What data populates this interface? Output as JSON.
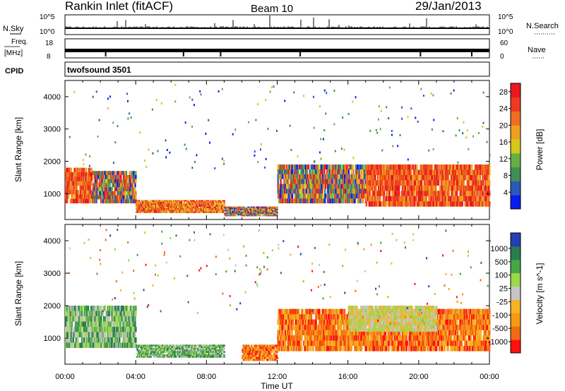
{
  "header": {
    "title": "Rankin Inlet (fitACF)",
    "beam": "Beam 10",
    "date": "29/Jan/2013"
  },
  "panels": {
    "nsky": {
      "left_label": "N.Sky",
      "left_ticks": [
        "10^5",
        "10^0"
      ],
      "right_ticks": [
        "10^5",
        "10^0"
      ],
      "right_label": "N.Search"
    },
    "freq": {
      "left_label_1": "Freq.",
      "left_label_2": "[MHz]",
      "left_ticks": [
        "18",
        "8"
      ],
      "right_ticks": [
        "60",
        "0"
      ],
      "right_label": "Nave"
    },
    "cpid": {
      "label": "CPID",
      "value": "twofsound 3501"
    }
  },
  "colors": {
    "power_scale": [
      "#0a1cf0",
      "#2a59b8",
      "#3f8f55",
      "#64b044",
      "#d7c61b",
      "#f0a020",
      "#f06e1f",
      "#ee3a22",
      "#e8191f"
    ],
    "velocity_scale": [
      "#ff1010",
      "#f36a12",
      "#f59a12",
      "#f5b428",
      "#c6c6c6",
      "#9bd84a",
      "#45a745",
      "#2c7a52",
      "#2440b0"
    ]
  },
  "chart_data": [
    {
      "type": "heatmap",
      "title": "Power",
      "xlabel": "Time UT",
      "ylabel": "Slant Range [km]",
      "x_ticks": [
        "00:00",
        "04:00",
        "08:00",
        "12:00",
        "16:00",
        "20:00",
        "00:00"
      ],
      "x_range_hours": [
        0,
        24
      ],
      "y_ticks": [
        1000,
        2000,
        3000,
        4000
      ],
      "ylim": [
        200,
        4500
      ],
      "colorbar": {
        "label": "Power [dB]",
        "ticks": [
          4,
          8,
          12,
          16,
          20,
          24,
          28
        ],
        "range": [
          0,
          30
        ]
      },
      "bands": [
        {
          "t": [
            0,
            1.5
          ],
          "r": [
            700,
            1800
          ],
          "level": "high"
        },
        {
          "t": [
            1.5,
            4
          ],
          "r": [
            700,
            1700
          ],
          "level": "mixed"
        },
        {
          "t": [
            4,
            9
          ],
          "r": [
            400,
            800
          ],
          "level": "moderate"
        },
        {
          "t": [
            9,
            12
          ],
          "r": [
            300,
            600
          ],
          "level": "mixed"
        },
        {
          "t": [
            12,
            17
          ],
          "r": [
            700,
            1900
          ],
          "level": "mixed"
        },
        {
          "t": [
            17,
            24
          ],
          "r": [
            600,
            1900
          ],
          "level": "high"
        }
      ]
    },
    {
      "type": "heatmap",
      "title": "Velocity",
      "xlabel": "Time UT",
      "ylabel": "Slant Range [km]",
      "x_ticks": [
        "00:00",
        "04:00",
        "08:00",
        "12:00",
        "16:00",
        "20:00",
        "00:00"
      ],
      "x_range_hours": [
        0,
        24
      ],
      "y_ticks": [
        1000,
        2000,
        3000,
        4000
      ],
      "ylim": [
        200,
        4500
      ],
      "colorbar": {
        "label": "Velocity [m s^-1]",
        "ticks": [
          "1000",
          "500",
          "100",
          "25",
          "-25",
          "-100",
          "-500",
          "-1000"
        ]
      },
      "bands": [
        {
          "t": [
            0,
            4
          ],
          "r": [
            700,
            2000
          ],
          "level": "positive"
        },
        {
          "t": [
            4,
            9
          ],
          "r": [
            400,
            800
          ],
          "level": "positive"
        },
        {
          "t": [
            10,
            12
          ],
          "r": [
            300,
            800
          ],
          "level": "negative"
        },
        {
          "t": [
            12,
            24
          ],
          "r": [
            600,
            1900
          ],
          "level": "negative"
        },
        {
          "t": [
            16,
            21
          ],
          "r": [
            1200,
            2000
          ],
          "level": "near-zero"
        }
      ]
    }
  ]
}
